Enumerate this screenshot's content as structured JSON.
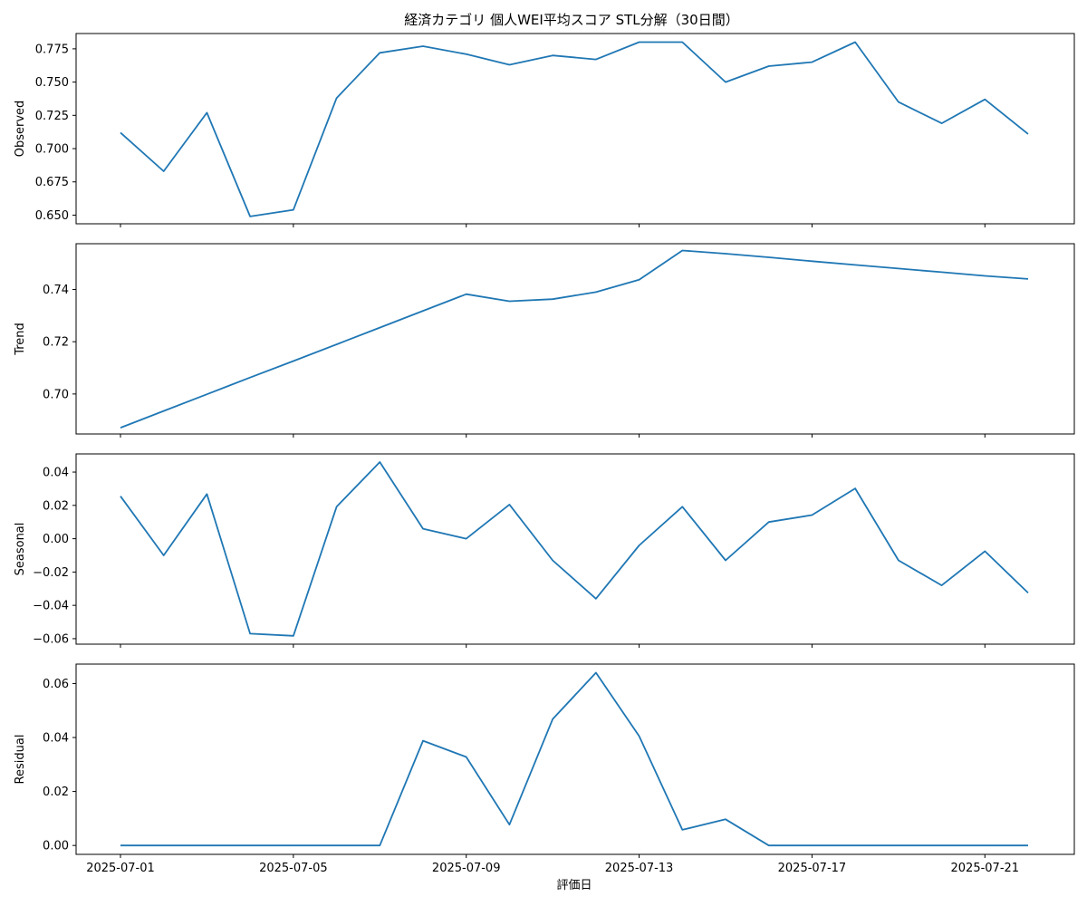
{
  "chart_data": {
    "type": "line",
    "title": "経済カテゴリ 個人WEI平均スコア STL分解（30日間）",
    "xlabel": "評価日",
    "x": [
      "2025-07-01",
      "2025-07-02",
      "2025-07-03",
      "2025-07-04",
      "2025-07-05",
      "2025-07-06",
      "2025-07-07",
      "2025-07-08",
      "2025-07-09",
      "2025-07-10",
      "2025-07-11",
      "2025-07-12",
      "2025-07-13",
      "2025-07-14",
      "2025-07-15",
      "2025-07-16",
      "2025-07-17",
      "2025-07-18",
      "2025-07-19",
      "2025-07-20",
      "2025-07-21",
      "2025-07-22"
    ],
    "x_ticks": [
      "2025-07-01",
      "2025-07-05",
      "2025-07-09",
      "2025-07-13",
      "2025-07-17",
      "2025-07-21"
    ],
    "line_color": "#1f77b4",
    "panels": [
      {
        "name": "observed",
        "ylabel": "Observed",
        "ylim": [
          0.6435,
          0.7865
        ],
        "yticks": [
          "0.650",
          "0.675",
          "0.700",
          "0.725",
          "0.750",
          "0.775"
        ],
        "values": [
          0.712,
          0.683,
          0.727,
          0.649,
          0.654,
          0.738,
          0.772,
          0.777,
          0.771,
          0.763,
          0.77,
          0.767,
          0.78,
          0.78,
          0.75,
          0.762,
          0.765,
          0.78,
          0.735,
          0.719,
          0.737,
          0.711
        ]
      },
      {
        "name": "trend",
        "ylabel": "Trend",
        "ylim": [
          0.6847,
          0.7575
        ],
        "yticks": [
          "0.70",
          "0.72",
          "0.74"
        ],
        "values": [
          0.6871,
          0.6935,
          0.6999,
          0.7063,
          0.7126,
          0.719,
          0.7254,
          0.7318,
          0.7382,
          0.7355,
          0.7363,
          0.739,
          0.7437,
          0.7549,
          0.7537,
          0.7523,
          0.7508,
          0.7494,
          0.748,
          0.7466,
          0.7452,
          0.744
        ]
      },
      {
        "name": "seasonal",
        "ylabel": "Seasonal",
        "ylim": [
          -0.0633,
          0.0509
        ],
        "yticks": [
          "−0.06",
          "−0.04",
          "−0.02",
          "0.00",
          "0.02",
          "0.04"
        ],
        "values": [
          0.0255,
          -0.01,
          0.0268,
          -0.057,
          -0.0583,
          0.0192,
          0.046,
          0.006,
          0.0,
          0.0205,
          -0.013,
          -0.036,
          -0.004,
          0.0192,
          -0.013,
          0.01,
          0.0142,
          0.0302,
          -0.013,
          -0.028,
          -0.0075,
          -0.0325
        ]
      },
      {
        "name": "residual",
        "ylabel": "Residual",
        "ylim": [
          -0.0033,
          0.0672
        ],
        "yticks": [
          "0.00",
          "0.02",
          "0.04",
          "0.06"
        ],
        "values": [
          0,
          0,
          0,
          0,
          0,
          0,
          0,
          0.0388,
          0.0328,
          0.0077,
          0.0468,
          0.064,
          0.0405,
          0.0058,
          0.0097,
          0,
          0,
          0,
          0,
          0,
          0,
          0
        ]
      }
    ]
  }
}
